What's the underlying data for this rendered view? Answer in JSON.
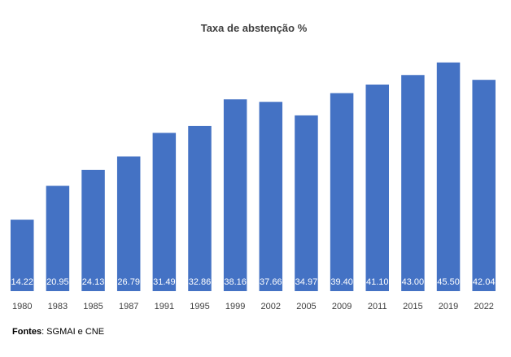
{
  "chart_data": {
    "type": "bar",
    "title": "Taxa de abstenção %",
    "xlabel": "",
    "ylabel": "",
    "categories": [
      "1980",
      "1983",
      "1985",
      "1987",
      "1991",
      "1995",
      "1999",
      "2002",
      "2005",
      "2009",
      "2011",
      "2015",
      "2019",
      "2022"
    ],
    "values": [
      14.22,
      20.95,
      24.13,
      26.79,
      31.49,
      32.86,
      38.16,
      37.66,
      34.97,
      39.4,
      41.1,
      43.0,
      45.5,
      42.04
    ],
    "data_labels": [
      "14.22",
      "20.95",
      "24.13",
      "26.79",
      "31.49",
      "32.86",
      "38.16",
      "37.66",
      "34.97",
      "39.40",
      "41.10",
      "43.00",
      "45.50",
      "42.04"
    ],
    "ylim": [
      0,
      50
    ],
    "grid": false,
    "legend": "none",
    "bar_color": "#4472C4",
    "label_color": "#FFFFFF"
  },
  "source": {
    "label": "Fontes",
    "text": ": SGMAI e CNE"
  }
}
